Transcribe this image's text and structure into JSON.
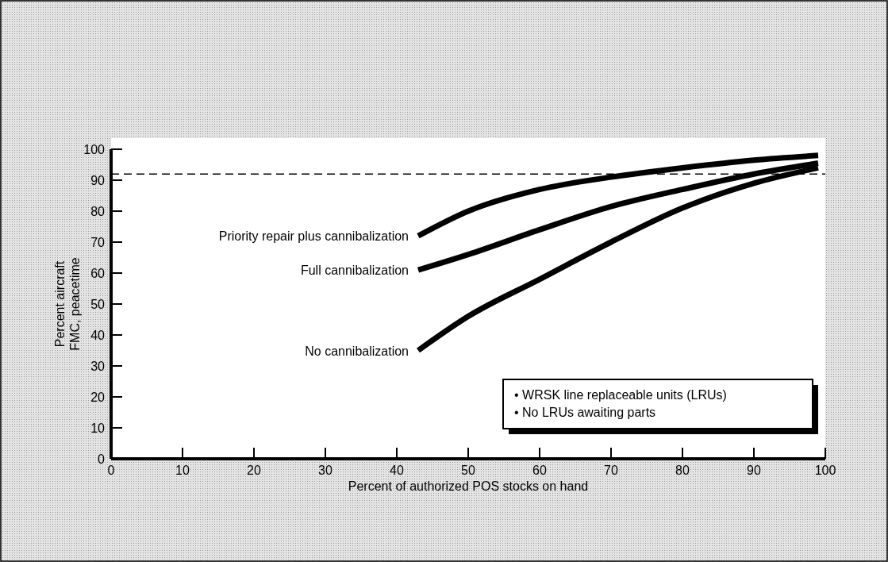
{
  "chart_data": {
    "type": "line",
    "xlabel": "Percent of authorized POS stocks on hand",
    "ylabel": "Percent aircraft\nFMC, peacetime",
    "xlim": [
      0,
      100
    ],
    "ylim": [
      0,
      100
    ],
    "xticks": [
      0,
      10,
      20,
      30,
      40,
      50,
      60,
      70,
      80,
      90,
      100
    ],
    "yticks": [
      0,
      10,
      20,
      30,
      40,
      50,
      60,
      70,
      80,
      90,
      100
    ],
    "grid": false,
    "marker": "none",
    "line_style": "solid",
    "series": [
      {
        "name": "Priority repair plus cannibalization",
        "color": "#000000",
        "x": [
          43,
          50,
          60,
          70,
          80,
          90,
          99
        ],
        "values": [
          72,
          80,
          87,
          91,
          94,
          96.5,
          98
        ]
      },
      {
        "name": "Full cannibalization",
        "color": "#000000",
        "x": [
          43,
          50,
          60,
          70,
          80,
          90,
          99
        ],
        "values": [
          61,
          66,
          74,
          81.5,
          87,
          92,
          95.5
        ]
      },
      {
        "name": "No cannibalization",
        "color": "#000000",
        "x": [
          43,
          50,
          60,
          70,
          80,
          90,
          99
        ],
        "values": [
          35,
          46,
          58,
          70,
          81,
          89,
          94
        ]
      }
    ],
    "ref_lines": [
      {
        "axis": "y",
        "value": 92,
        "line_style": "dashed",
        "color": "#000000"
      }
    ],
    "annotations": [
      "• WRSK line replaceable units (LRUs)",
      "• No LRUs awaiting parts"
    ]
  }
}
